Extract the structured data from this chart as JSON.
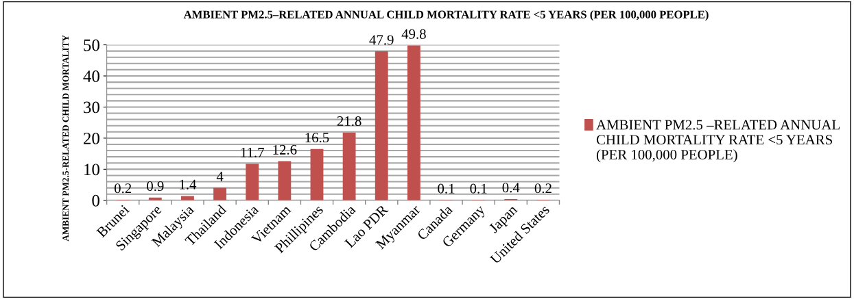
{
  "chart_data": {
    "type": "bar",
    "title": "AMBIENT PM2.5–RELATED ANNUAL CHILD MORTALITY RATE <5 YEARS (PER 100,000 PEOPLE)",
    "ylabel": "AMBIENT PM2.5-RELATED CHILD MORTALITY",
    "categories": [
      "Brunei",
      "Singapore",
      "Malaysia",
      "Thailand",
      "Indonesia",
      "Vietnam",
      "Phillipines",
      "Cambodia",
      "Lao PDR",
      "Myanmar",
      "Canada",
      "Germany",
      "Japan",
      "United States"
    ],
    "series": [
      {
        "name": "AMBIENT PM2.5 –RELATED ANNUAL CHILD MORTALITY RATE <5 YEARS (PER 100,000 PEOPLE)",
        "color": "#c0504d",
        "values": [
          0.2,
          0.9,
          1.4,
          4,
          11.7,
          12.6,
          16.5,
          21.8,
          47.9,
          49.8,
          0.1,
          0.1,
          0.4,
          0.2
        ]
      }
    ],
    "ylim": [
      0,
      50
    ],
    "yticks": [
      0,
      10,
      20,
      30,
      40,
      50
    ],
    "grid": "y",
    "legend": "right",
    "data_labels": true
  }
}
